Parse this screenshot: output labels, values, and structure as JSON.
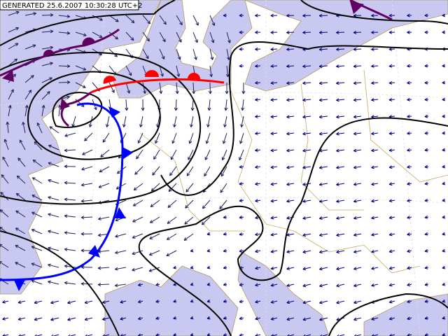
{
  "header": {
    "label": "GENERATED 25.6.2007 10:30:28 UTC+2"
  }
}
